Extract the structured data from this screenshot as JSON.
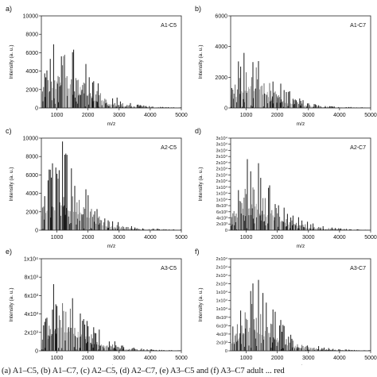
{
  "figure": {
    "caption": "(a) A1–C5, (b) A1–C7, (c) A2–C5, (d) A2–C7, (e) A3–C5 and (f) A3–C7 adult ... red"
  },
  "chart_data": [
    {
      "type": "bar",
      "panel_label": "a)",
      "title": "A1-C5",
      "xlabel": "m/z",
      "ylabel": "Intensity (a. u.)",
      "xlim": [
        500,
        5000
      ],
      "ylim": [
        0,
        10000
      ],
      "xticks": [
        1000,
        2000,
        3000,
        4000,
        5000
      ],
      "xtick_labels": [
        "1000",
        "2000",
        "3000",
        "4000",
        "5000"
      ],
      "yticks": [
        0,
        2000,
        4000,
        6000,
        8000,
        10000
      ],
      "ytick_labels": [
        "0",
        "2000",
        "4000",
        "6000",
        "8000",
        "10000"
      ],
      "grid": false,
      "envelope": {
        "mz": [
          500,
          700,
          900,
          1100,
          1300,
          1500,
          1800,
          2200,
          2600,
          3000,
          3500,
          4000,
          4500,
          5000
        ],
        "intensity": [
          2500,
          5500,
          7200,
          8300,
          8800,
          7600,
          5600,
          3200,
          1800,
          900,
          400,
          200,
          120,
          80
        ]
      }
    },
    {
      "type": "bar",
      "panel_label": "b)",
      "title": "A1-C7",
      "xlabel": "m/z",
      "ylabel": "Intensity (a. u.)",
      "xlim": [
        500,
        5000
      ],
      "ylim": [
        0,
        6000
      ],
      "xticks": [
        1000,
        2000,
        3000,
        4000,
        5000
      ],
      "xtick_labels": [
        "1000",
        "2000",
        "3000",
        "4000",
        "5000"
      ],
      "yticks": [
        0,
        2000,
        4000,
        6000
      ],
      "ytick_labels": [
        "0",
        "2000",
        "4000",
        "6000"
      ],
      "grid": false,
      "envelope": {
        "mz": [
          500,
          700,
          900,
          1100,
          1300,
          1500,
          1800,
          2200,
          2600,
          3000,
          3500,
          4000,
          4500,
          5000
        ],
        "intensity": [
          1400,
          2800,
          4000,
          4500,
          4400,
          3600,
          2500,
          1400,
          700,
          350,
          150,
          80,
          50,
          30
        ]
      }
    },
    {
      "type": "bar",
      "panel_label": "c)",
      "title": "A2-C5",
      "xlabel": "m/z",
      "ylabel": "Intensity (a. u.)",
      "xlim": [
        500,
        5000
      ],
      "ylim": [
        0,
        10000
      ],
      "xticks": [
        1000,
        2000,
        3000,
        4000,
        5000
      ],
      "xtick_labels": [
        "1000",
        "2000",
        "3000",
        "4000",
        "5000"
      ],
      "yticks": [
        0,
        2000,
        4000,
        6000,
        8000,
        10000
      ],
      "ytick_labels": [
        "0",
        "2000",
        "4000",
        "6000",
        "8000",
        "10000"
      ],
      "grid": false,
      "envelope": {
        "mz": [
          500,
          700,
          900,
          1100,
          1300,
          1500,
          1800,
          2200,
          2600,
          3000,
          3500,
          4000,
          4500,
          5000
        ],
        "intensity": [
          3200,
          6200,
          8400,
          9300,
          9000,
          7600,
          5400,
          3000,
          1600,
          800,
          350,
          180,
          100,
          60
        ]
      }
    },
    {
      "type": "bar",
      "panel_label": "d)",
      "title": "A2-C7",
      "xlabel": "m/z",
      "ylabel": "Intensity (a. u.)",
      "xlim": [
        500,
        5000
      ],
      "ylim": [
        0,
        30000
      ],
      "xticks": [
        1000,
        2000,
        3000,
        4000,
        5000
      ],
      "xtick_labels": [
        "1000",
        "2000",
        "3000",
        "4000",
        "5000"
      ],
      "yticks": [
        0,
        2000,
        4000,
        6000,
        8000,
        10000,
        12000,
        14000,
        16000,
        18000,
        20000,
        22000,
        24000,
        26000,
        28000,
        30000
      ],
      "ytick_labels": [
        "0",
        "2x10³",
        "4x10³",
        "6x10³",
        "8x10³",
        "1x10⁴",
        "1x10⁴",
        "1x10⁴",
        "2x10⁴",
        "2x10⁴",
        "2x10⁴",
        "2x10⁴",
        "2x10⁴",
        "3x10⁴",
        "3x10⁴",
        "3x10⁴"
      ],
      "grid": false,
      "envelope": {
        "mz": [
          500,
          700,
          900,
          1100,
          1300,
          1500,
          1800,
          2200,
          2600,
          3000,
          3500,
          4000,
          4500,
          5000
        ],
        "intensity": [
          6000,
          14000,
          21000,
          25000,
          24000,
          20000,
          14000,
          8000,
          4500,
          2500,
          1200,
          600,
          300,
          200
        ]
      }
    },
    {
      "type": "bar",
      "panel_label": "e)",
      "title": "A3-C5",
      "xlabel": "m/z",
      "ylabel": "Intensity (a. u.)",
      "xlim": [
        500,
        5000
      ],
      "ylim": [
        0,
        10000
      ],
      "xticks": [
        1000,
        2000,
        3000,
        4000,
        5000
      ],
      "xtick_labels": [
        "1000",
        "2000",
        "3000",
        "4000",
        "5000"
      ],
      "yticks": [
        0,
        2000,
        4000,
        6000,
        8000,
        10000
      ],
      "ytick_labels": [
        "0",
        "2x10³",
        "4x10³",
        "6x10³",
        "8x10³",
        "1x10⁴"
      ],
      "grid": false,
      "envelope": {
        "mz": [
          500,
          700,
          900,
          1100,
          1300,
          1500,
          1800,
          2200,
          2600,
          3000,
          3500,
          4000,
          4500,
          5000
        ],
        "intensity": [
          2200,
          5000,
          6800,
          7800,
          8000,
          6800,
          4800,
          2600,
          1400,
          700,
          300,
          150,
          90,
          60
        ]
      }
    },
    {
      "type": "bar",
      "panel_label": "f)",
      "title": "A3-C7",
      "xlabel": "m/z",
      "ylabel": "Intensity (a. u.)",
      "xlim": [
        500,
        5000
      ],
      "ylim": [
        0,
        22000
      ],
      "xticks": [
        1000,
        2000,
        3000,
        4000,
        5000
      ],
      "xtick_labels": [
        "1000",
        "2000",
        "3000",
        "4000",
        "5000"
      ],
      "yticks": [
        0,
        2000,
        4000,
        6000,
        8000,
        10000,
        12000,
        14000,
        16000,
        18000,
        20000,
        22000
      ],
      "ytick_labels": [
        "0",
        "2x10³",
        "4x10³",
        "6x10³",
        "8x10³",
        "1x10⁴",
        "1x10⁴",
        "1x10⁴",
        "2x10⁴",
        "2x10⁴",
        "2x10⁴",
        "2x10⁴"
      ],
      "grid": false,
      "envelope": {
        "mz": [
          500,
          700,
          900,
          1100,
          1300,
          1500,
          1800,
          2200,
          2600,
          3000,
          3500,
          4000,
          4500,
          5000
        ],
        "intensity": [
          4500,
          10000,
          15500,
          18500,
          18000,
          15000,
          10500,
          6000,
          3200,
          1700,
          800,
          400,
          220,
          140
        ]
      }
    }
  ]
}
